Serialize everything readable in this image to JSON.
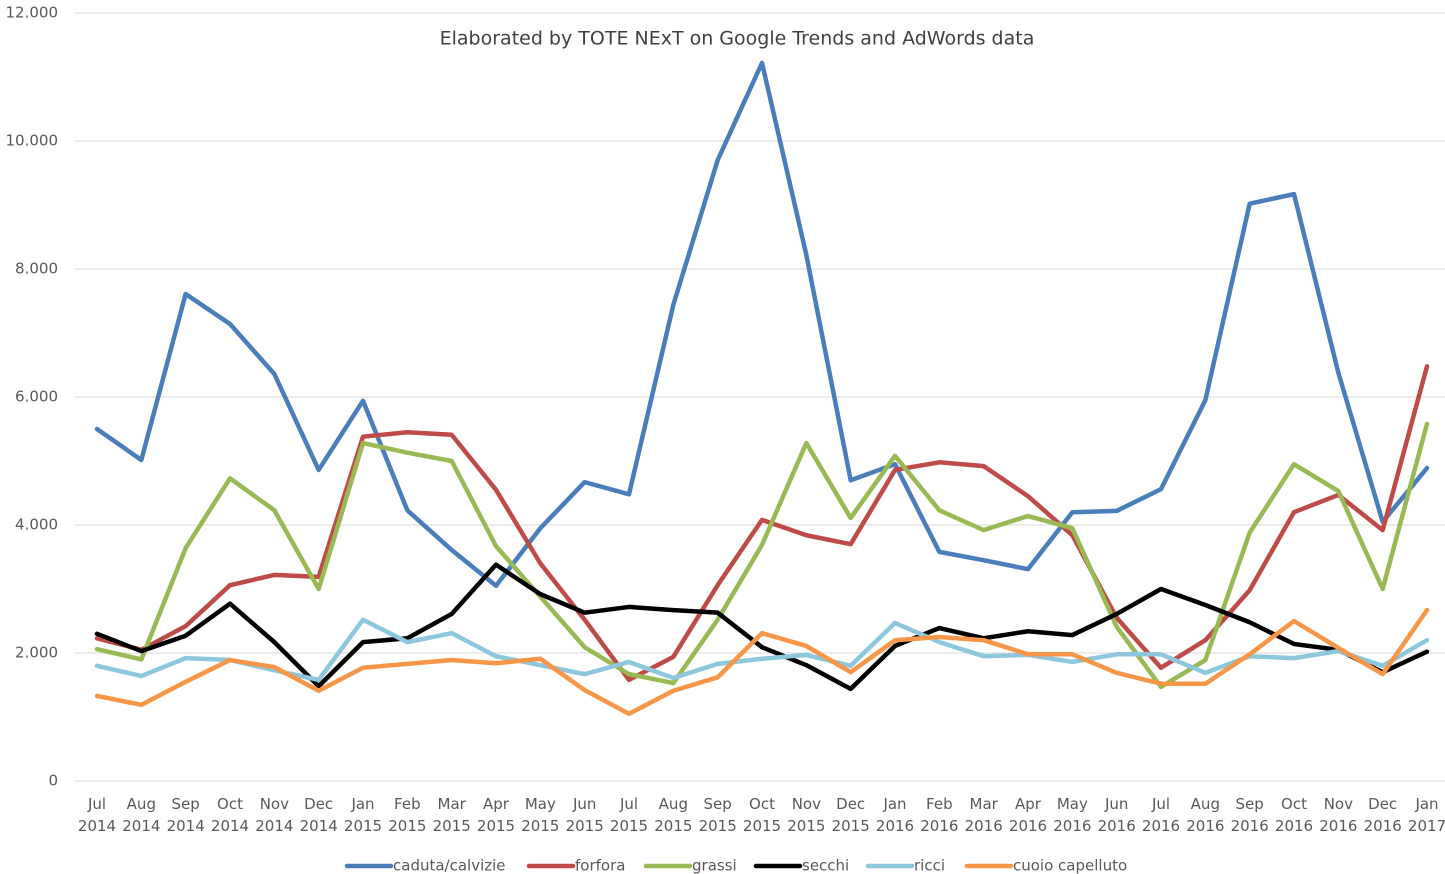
{
  "chart_data": {
    "type": "line",
    "title": "Elaborated by TOTE NExT on Google Trends and AdWords data",
    "categories": [
      "Jul 2014",
      "Aug 2014",
      "Sep 2014",
      "Oct 2014",
      "Nov 2014",
      "Dec 2014",
      "Jan 2015",
      "Feb 2015",
      "Mar 2015",
      "Apr 2015",
      "May 2015",
      "Jun 2015",
      "Jul 2015",
      "Aug 2015",
      "Sep 2015",
      "Oct 2015",
      "Nov 2015",
      "Dec 2015",
      "Jan 2016",
      "Feb 2016",
      "Mar 2016",
      "Apr 2016",
      "May 2016",
      "Jun 2016",
      "Jul 2016",
      "Aug 2016",
      "Sep 2016",
      "Oct 2016",
      "Nov 2016",
      "Dec 2016",
      "Jan 2017"
    ],
    "series": [
      {
        "name": "caduta/calvizie",
        "color": "#4a7ebb",
        "values": [
          5500,
          5016,
          7610,
          7140,
          6360,
          4860,
          5940,
          4230,
          3610,
          3050,
          3950,
          4670,
          4480,
          7440,
          9700,
          11220,
          8220,
          4700,
          4950,
          3580,
          3450,
          3310,
          4200,
          4220,
          4560,
          5950,
          9020,
          9170,
          6380,
          4050,
          4890
        ]
      },
      {
        "name": "forfora",
        "color": "#be4b48",
        "values": [
          2230,
          2050,
          2420,
          3060,
          3220,
          3190,
          5380,
          5450,
          5410,
          4550,
          3400,
          2520,
          1580,
          1940,
          3060,
          4080,
          3840,
          3700,
          4860,
          4980,
          4920,
          4450,
          3840,
          2550,
          1770,
          2200,
          2980,
          4200,
          4470,
          3920,
          6480
        ]
      },
      {
        "name": "grassi",
        "color": "#98b954",
        "values": [
          2060,
          1900,
          3640,
          4730,
          4230,
          3000,
          5280,
          5130,
          5000,
          3670,
          2880,
          2090,
          1670,
          1530,
          2520,
          3690,
          5280,
          4110,
          5080,
          4230,
          3920,
          4140,
          3950,
          2410,
          1470,
          1890,
          3880,
          4950,
          4530,
          3000,
          5580
        ]
      },
      {
        "name": "secchi",
        "color": "#000000",
        "values": [
          2300,
          2030,
          2270,
          2770,
          2170,
          1480,
          2170,
          2230,
          2610,
          3380,
          2920,
          2630,
          2720,
          2670,
          2630,
          2090,
          1810,
          1440,
          2110,
          2390,
          2230,
          2340,
          2280,
          2610,
          3000,
          2750,
          2480,
          2140,
          2050,
          1700,
          2020
        ]
      },
      {
        "name": "ricci",
        "color": "#8cc7de",
        "values": [
          1800,
          1640,
          1920,
          1890,
          1730,
          1580,
          2520,
          2170,
          2310,
          1950,
          1810,
          1670,
          1860,
          1610,
          1830,
          1910,
          1970,
          1800,
          2470,
          2170,
          1950,
          1970,
          1860,
          1980,
          1980,
          1690,
          1950,
          1920,
          2030,
          1800,
          2200
        ]
      },
      {
        "name": "cuoio capelluto",
        "color": "#f79646",
        "values": [
          1330,
          1190,
          1550,
          1890,
          1780,
          1410,
          1770,
          1830,
          1890,
          1840,
          1910,
          1420,
          1050,
          1410,
          1620,
          2310,
          2110,
          1700,
          2200,
          2250,
          2200,
          1980,
          1980,
          1690,
          1520,
          1520,
          1980,
          2500,
          2080,
          1670,
          2670
        ]
      }
    ],
    "ylim": [
      0,
      12000
    ],
    "yticks": [
      0,
      {
        "value": 2000,
        "label": "2.000"
      },
      {
        "value": 4000,
        "label": "4.000"
      },
      {
        "value": 6000,
        "label": "6.000"
      },
      {
        "value": 8000,
        "label": "8.000"
      },
      {
        "value": 10000,
        "label": "10.000"
      },
      {
        "value": 12000,
        "label": "12.000"
      }
    ],
    "grid": true,
    "legend": "bottom"
  }
}
